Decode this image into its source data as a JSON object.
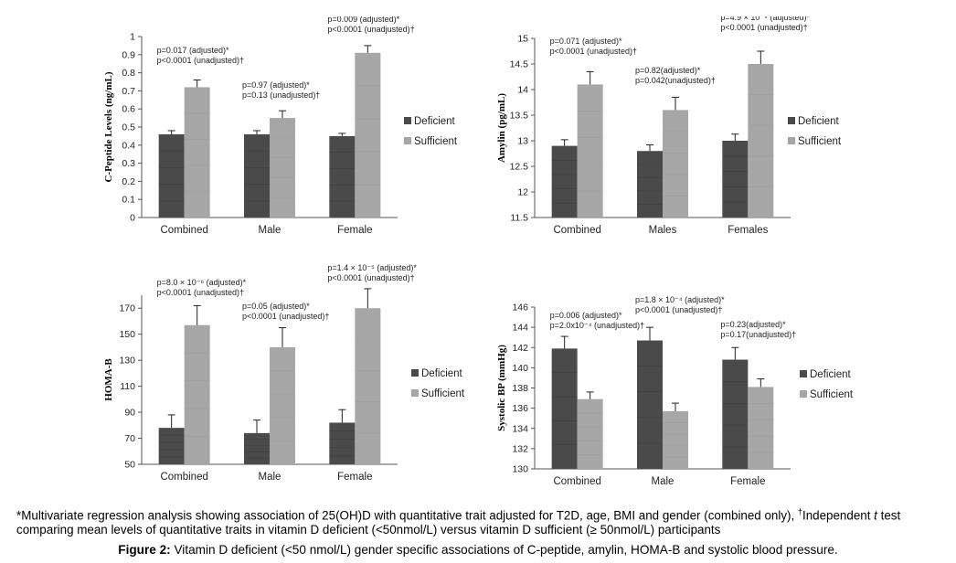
{
  "series_names": [
    "Deficient",
    "Sufficient"
  ],
  "colors": {
    "deficient": "#4a4a4a",
    "sufficient": "#a6a6a6"
  },
  "chart_data": [
    {
      "type": "bar",
      "ylabel": "C-Peptide Levels (ng/mL)",
      "ylim": [
        0,
        1
      ],
      "yticks": [
        "0",
        "0.1",
        "0.2",
        "0.3",
        "0.4",
        "0.5",
        "0.6",
        "0.7",
        "0.8",
        "0.9",
        "1"
      ],
      "tick_values": [
        0,
        0.1,
        0.2,
        0.3,
        0.4,
        0.5,
        0.6,
        0.7,
        0.8,
        0.9,
        1
      ],
      "categories": [
        "Combined",
        "Male",
        "Female"
      ],
      "series": [
        {
          "name": "Deficient",
          "values": [
            0.46,
            0.46,
            0.45
          ],
          "errors": [
            0.02,
            0.02,
            0.015
          ]
        },
        {
          "name": "Sufficient",
          "values": [
            0.72,
            0.55,
            0.91
          ],
          "errors": [
            0.04,
            0.04,
            0.04
          ]
        }
      ],
      "annotations": [
        [
          "p=0.017 (adjusted)*",
          "p<0.0001 (unadjusted)†"
        ],
        [
          "p=0.97 (adjusted)*",
          "p=0.13 (unadjusted)†"
        ],
        [
          "p=0.009 (adjusted)*",
          "p<0.0001 (unadjusted)†"
        ]
      ],
      "legend": "right",
      "grid": false
    },
    {
      "type": "bar",
      "ylabel": "Amylin (pg/mL)",
      "ylim": [
        11.5,
        15
      ],
      "yticks": [
        "11.5",
        "12",
        "12.5",
        "13",
        "13.5",
        "14",
        "14.5",
        "15"
      ],
      "tick_values": [
        11.5,
        12,
        12.5,
        13,
        13.5,
        14,
        14.5,
        15
      ],
      "categories": [
        "Combined",
        "Males",
        "Females"
      ],
      "series": [
        {
          "name": "Deficient",
          "values": [
            12.9,
            12.8,
            13.0
          ],
          "errors": [
            0.12,
            0.12,
            0.13
          ]
        },
        {
          "name": "Sufficient",
          "values": [
            14.1,
            13.6,
            14.5
          ],
          "errors": [
            0.25,
            0.25,
            0.25
          ]
        }
      ],
      "annotations": [
        [
          "p=0.071 (adjusted)*",
          "p<0.0001 (unadjusted)†"
        ],
        [
          "p=0.82(adjusted)*",
          "p=0.042(unadjusted)†"
        ],
        [
          "p=4.9 × 10⁻⁴ (adjusted)*",
          "p<0.0001 (unadjusted)†"
        ]
      ],
      "legend": "right",
      "grid": false
    },
    {
      "type": "bar",
      "ylabel": "HOMA-B",
      "ylim": [
        50,
        180
      ],
      "yticks": [
        "50",
        "70",
        "90",
        "110",
        "130",
        "150",
        "170"
      ],
      "tick_values": [
        50,
        70,
        90,
        110,
        130,
        150,
        170
      ],
      "categories": [
        "Combined",
        "Male",
        "Female"
      ],
      "series": [
        {
          "name": "Deficient",
          "values": [
            78,
            74,
            82
          ],
          "errors": [
            10,
            10,
            10
          ]
        },
        {
          "name": "Sufficient",
          "values": [
            157,
            140,
            170
          ],
          "errors": [
            15,
            15,
            15
          ]
        }
      ],
      "annotations": [
        [
          "p=8.0 × 10⁻⁶ (adjusted)*",
          "p<0.0001 (unadjusted)†"
        ],
        [
          "p=0.05 (adjusted)*",
          "p<0.0001 (unadjusted)†"
        ],
        [
          "p=1.4 × 10⁻⁵ (adjusted)*",
          "p<0.0001 (unadjusted)†"
        ]
      ],
      "legend": "right",
      "grid": false
    },
    {
      "type": "bar",
      "ylabel": "Systolic BP (mmHg)",
      "ylim": [
        130,
        146
      ],
      "yticks": [
        "130",
        "132",
        "134",
        "136",
        "138",
        "140",
        "142",
        "144",
        "146"
      ],
      "tick_values": [
        130,
        132,
        134,
        136,
        138,
        140,
        142,
        144,
        146
      ],
      "categories": [
        "Combined",
        "Male",
        "Female"
      ],
      "series": [
        {
          "name": "Deficient",
          "values": [
            141.9,
            142.7,
            140.8
          ],
          "errors": [
            1.2,
            1.3,
            1.2
          ]
        },
        {
          "name": "Sufficient",
          "values": [
            136.9,
            135.7,
            138.1
          ],
          "errors": [
            0.7,
            0.8,
            0.8
          ]
        }
      ],
      "annotations": [
        [
          "p=0.006 (adjusted)*",
          "p=2.0x10⁻⁴ (unadjusted)†"
        ],
        [
          "p=1.8 × 10⁻⁴ (adjusted)*",
          "p<0.0001 (unadjusted)†"
        ],
        [
          "p=0.23(adjusted)*",
          "p=0.17(unadjusted)†"
        ]
      ],
      "legend": "right",
      "grid": false
    }
  ],
  "footnote": {
    "part1": "*Multivariate regression analysis showing association of 25(OH)D with quantitative trait adjusted for T2D, age, BMI and gender (combined only), ",
    "dagger": "†",
    "part2": "Independent ",
    "italic_t": "t",
    "part3": " test comparing mean levels of quantitative traits in vitamin D deficient (<50nmol/L) versus vitamin D sufficient (≥ 50nmol/L) participants"
  },
  "caption": {
    "label": "Figure 2:",
    "text": " Vitamin D deficient (<50 nmol/L) gender specific associations of C-peptide, amylin, HOMA-B and systolic blood pressure."
  }
}
